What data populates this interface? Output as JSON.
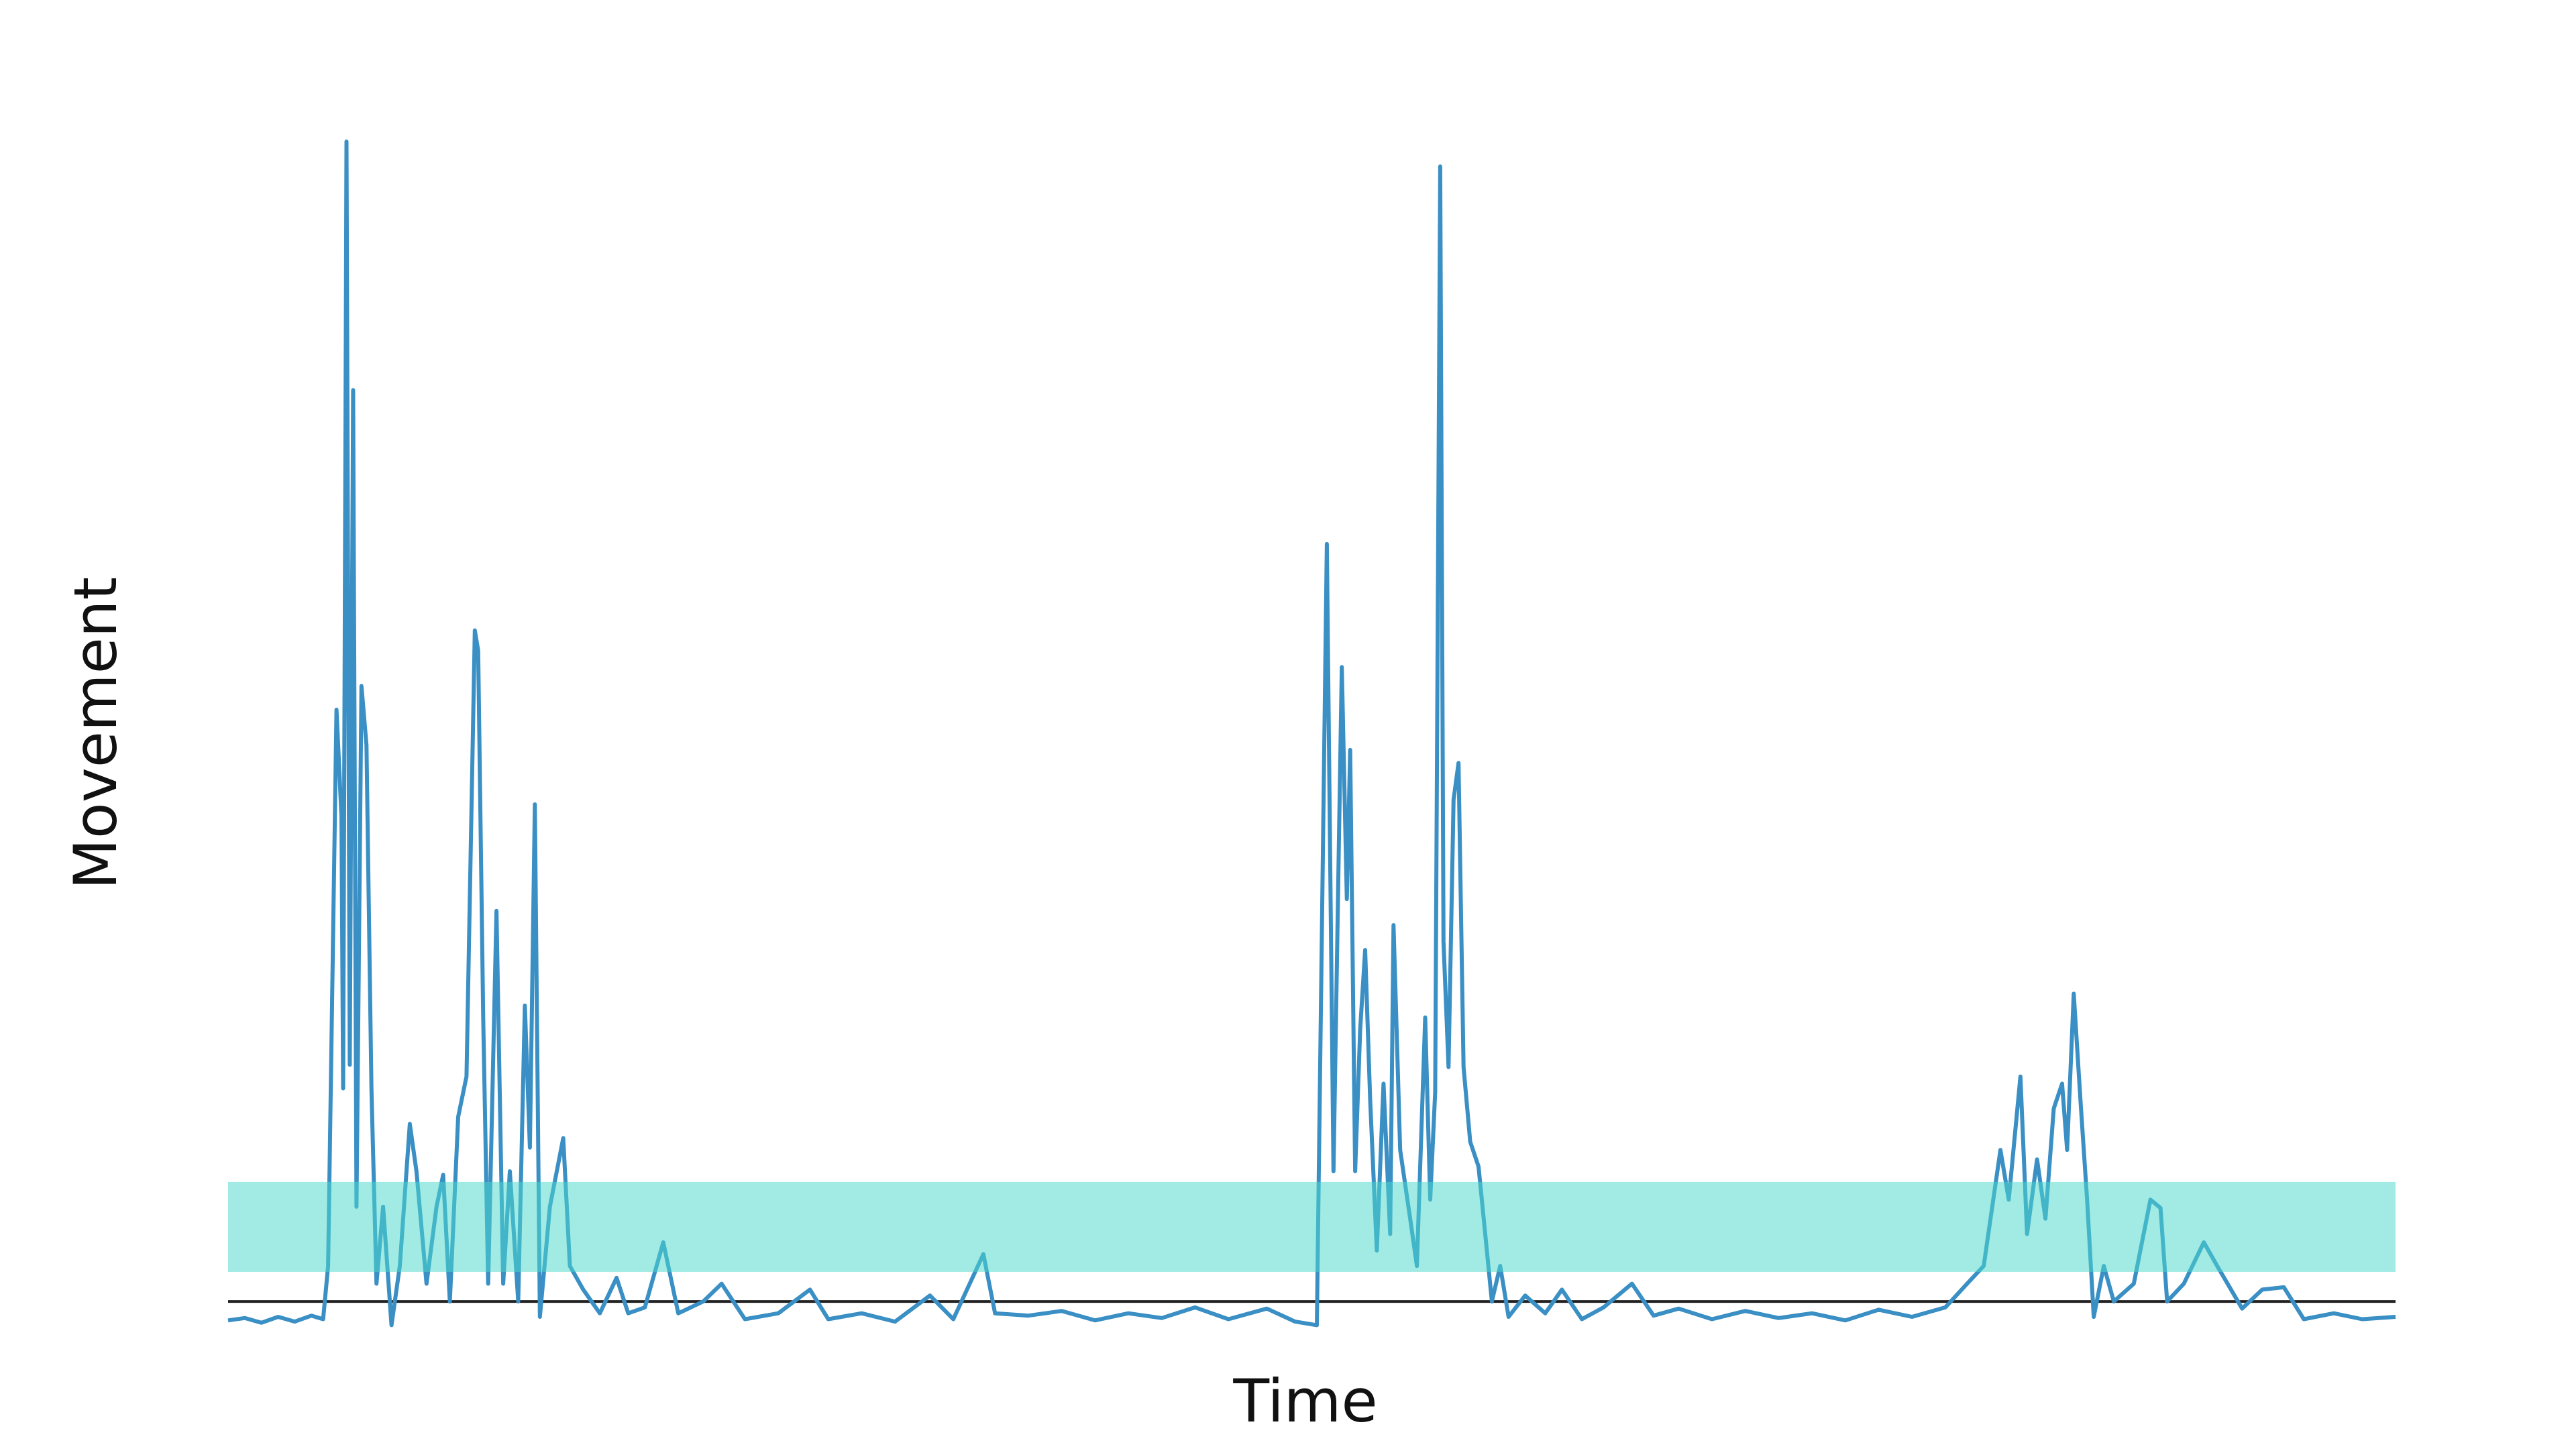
{
  "chart_data": {
    "type": "line",
    "x_label": "Time",
    "y_label": "Movement",
    "color": "#3a8fc4",
    "xlim": [
      0,
      1300
    ],
    "ylim": [
      -1,
      100
    ],
    "threshold": 2,
    "threshold_color": "#222222",
    "band": [
      4.5,
      12.1
    ],
    "band_color": "#4dd9cc",
    "x": [
      0,
      10,
      20,
      30,
      40,
      50,
      57,
      60,
      65,
      68,
      69,
      71,
      73,
      75,
      77,
      80,
      83,
      86,
      89,
      93,
      98,
      103,
      109,
      113,
      119,
      125,
      129,
      133,
      138,
      143,
      148,
      150,
      153,
      156,
      161,
      165,
      169,
      174,
      178,
      181,
      184,
      187,
      193,
      201,
      205,
      213,
      223,
      233,
      240,
      250,
      261,
      270,
      285,
      296,
      310,
      330,
      349,
      360,
      380,
      400,
      421,
      435,
      453,
      460,
      480,
      500,
      520,
      540,
      560,
      580,
      600,
      623,
      640,
      653,
      659,
      663,
      668,
      671,
      673,
      676,
      679,
      682,
      685,
      689,
      693,
      697,
      699,
      703,
      709,
      713,
      718,
      721,
      724,
      727,
      729,
      732,
      735,
      738,
      741,
      745,
      750,
      754,
      758,
      763,
      768,
      778,
      790,
      800,
      812,
      825,
      842,
      855,
      870,
      890,
      910,
      930,
      950,
      970,
      990,
      1010,
      1030,
      1043,
      1053,
      1063,
      1068,
      1075,
      1079,
      1085,
      1090,
      1095,
      1100,
      1103,
      1107,
      1111,
      1115,
      1119,
      1125,
      1131,
      1143,
      1153,
      1159,
      1163,
      1173,
      1185,
      1193,
      1208,
      1220,
      1233,
      1245,
      1263,
      1280,
      1300
    ],
    "values": [
      0.4,
      0.6,
      0.2,
      0.7,
      0.3,
      0.8,
      0.5,
      5,
      52,
      43,
      20,
      100,
      22,
      79,
      10,
      54,
      49,
      20,
      3.5,
      10,
      0,
      5,
      17,
      13,
      3.5,
      10,
      12.7,
      2,
      17.6,
      21,
      58.7,
      57,
      26,
      3.5,
      35,
      3.5,
      13,
      2,
      27,
      15,
      44,
      0.7,
      10,
      15.8,
      5,
      3,
      1,
      4,
      1,
      1.5,
      7,
      1,
      2,
      3.5,
      0.5,
      1,
      3,
      0.5,
      1,
      0.3,
      2.5,
      0.5,
      6,
      1,
      0.8,
      1.2,
      0.4,
      1,
      0.6,
      1.5,
      0.5,
      1.4,
      0.3,
      0,
      66,
      13,
      55.6,
      36,
      48.6,
      13,
      25,
      31.7,
      19,
      6.3,
      20.4,
      7.7,
      33.8,
      14.8,
      9,
      5,
      26,
      10.6,
      19.7,
      97.9,
      32.4,
      21.8,
      44.4,
      47.5,
      21.8,
      15.5,
      13.4,
      7.7,
      2,
      5,
      0.7,
      2.5,
      1,
      3,
      0.5,
      1.5,
      3.5,
      0.8,
      1.4,
      0.5,
      1.2,
      0.6,
      1,
      0.4,
      1.3,
      0.7,
      1.5,
      3.5,
      5,
      14.8,
      10.6,
      21,
      7.7,
      14,
      9,
      18.3,
      20.4,
      14.8,
      28,
      19,
      10.6,
      0.7,
      5,
      2,
      3.5,
      10.6,
      9.9,
      2,
      3.5,
      7,
      5,
      1.4,
      3,
      3.2,
      0.5,
      1,
      0.5,
      0.7
    ]
  }
}
